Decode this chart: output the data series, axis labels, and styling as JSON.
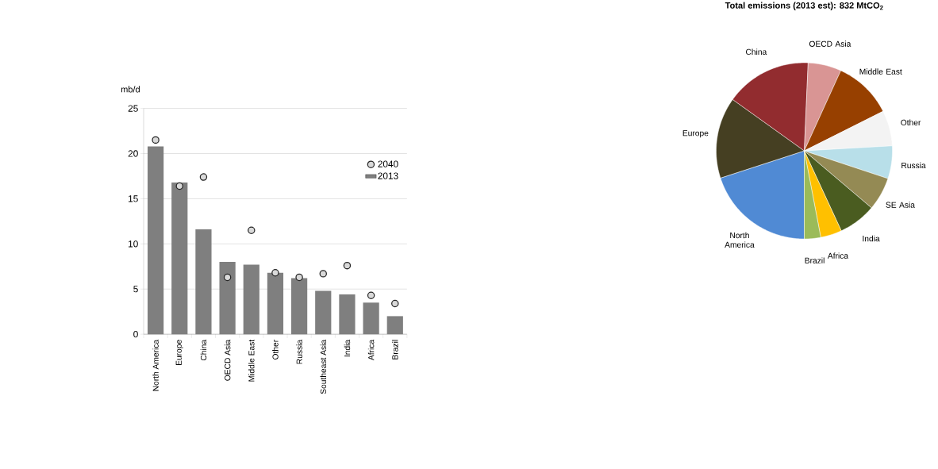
{
  "chart_data": [
    {
      "type": "bar",
      "ylabel": "mb/d",
      "categories": [
        "North America",
        "Europe",
        "China",
        "OECD Asia",
        "Middle East",
        "Other",
        "Russia",
        "Southeast Asia",
        "India",
        "Africa",
        "Brazil"
      ],
      "ylim": [
        0,
        25
      ],
      "yticks": [
        0,
        5,
        10,
        15,
        20,
        25
      ],
      "grid": "y",
      "legend": "top right",
      "series": [
        {
          "name": "2013",
          "type": "bar",
          "color": "#7f7f7f",
          "values": [
            20.8,
            16.8,
            11.6,
            8.0,
            7.7,
            6.8,
            6.2,
            4.8,
            4.4,
            3.5,
            2.0
          ]
        },
        {
          "name": "2040",
          "type": "scatter",
          "marker": "circle",
          "color": "#d9d9d9",
          "values": [
            21.5,
            16.4,
            17.4,
            6.3,
            11.5,
            6.8,
            6.3,
            6.7,
            7.6,
            4.3,
            3.4
          ]
        }
      ]
    },
    {
      "type": "pie",
      "title": "Total emissions (2013 est): 832 MtCO$_{2}$",
      "categories": [
        "North America",
        "Europe",
        "China",
        "OECD Asia",
        "Middle East",
        "Other",
        "Russia",
        "SE Asia",
        "India",
        "Africa",
        "Brazil"
      ],
      "values": [
        20.0,
        14.9,
        15.8,
        6.1,
        10.8,
        6.5,
        6.0,
        6.1,
        6.9,
        3.9,
        3.0
      ],
      "colors": [
        "#508ad4",
        "#453f22",
        "#922c2f",
        "#d99594",
        "#974000",
        "#f3f3f3",
        "#b8dfe9",
        "#948a54",
        "#4a5c20",
        "#ffc000",
        "#9bbb59"
      ]
    }
  ]
}
